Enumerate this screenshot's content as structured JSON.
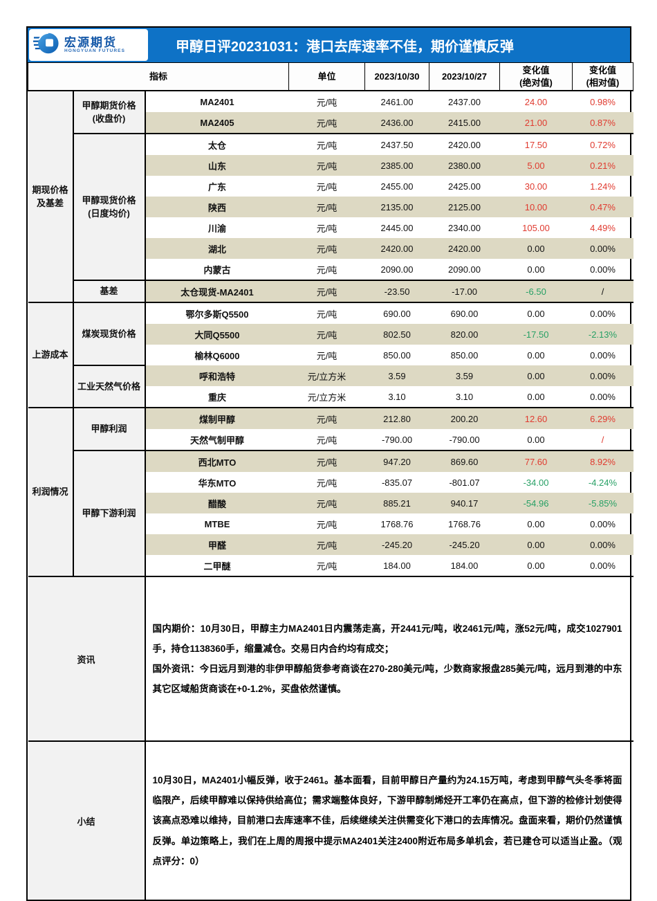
{
  "colors": {
    "accent_blue": "#0e72c6",
    "band_beige": "#ddd9c3",
    "label_gray": "#f2f2f2",
    "up_red": "#e03a2f",
    "down_green": "#27a065"
  },
  "header": {
    "logo": {
      "brand": "宏源期货",
      "brand_sub": "HONGYUAN FUTURES"
    },
    "title": "甲醇日评20231031：港口去库速率不佳，期价谨慎反弹"
  },
  "table": {
    "columns": {
      "indicator": "指标",
      "unit": "单位",
      "date1": "2023/10/30",
      "date2": "2023/10/27",
      "abs_change": "变化值\n(绝对值)",
      "rel_change": "变化值\n(相对值)"
    },
    "groups": [
      {
        "label": "期现价格\n及基差",
        "rows": 10
      },
      {
        "label": "上游成本",
        "rows": 5
      },
      {
        "label": "利润情况",
        "rows": 8
      }
    ],
    "subgroups": [
      {
        "label": "甲醇期货价格\n(收盘价)",
        "rows": 2
      },
      {
        "label": "甲醇现货价格\n(日度均价)",
        "rows": 7
      },
      {
        "label": "基差",
        "rows": 1
      },
      {
        "label": "煤炭现货价格",
        "rows": 3
      },
      {
        "label": "工业天然气价格",
        "rows": 2
      },
      {
        "label": "甲醇利润",
        "rows": 2
      },
      {
        "label": "甲醇下游利润",
        "rows": 6
      }
    ],
    "section_end_rows": [
      2,
      9,
      10,
      15,
      17
    ],
    "rows": [
      {
        "name": "MA2401",
        "unit": "元/吨",
        "v1": "2461.00",
        "v2": "2437.00",
        "abs": "24.00",
        "rel": "0.98%",
        "abs_c": "red",
        "rel_c": "red"
      },
      {
        "name": "MA2405",
        "unit": "元/吨",
        "v1": "2436.00",
        "v2": "2415.00",
        "abs": "21.00",
        "rel": "0.87%",
        "abs_c": "red",
        "rel_c": "red"
      },
      {
        "name": "太仓",
        "unit": "元/吨",
        "v1": "2437.50",
        "v2": "2420.00",
        "abs": "17.50",
        "rel": "0.72%",
        "abs_c": "red",
        "rel_c": "red"
      },
      {
        "name": "山东",
        "unit": "元/吨",
        "v1": "2385.00",
        "v2": "2380.00",
        "abs": "5.00",
        "rel": "0.21%",
        "abs_c": "red",
        "rel_c": "red"
      },
      {
        "name": "广东",
        "unit": "元/吨",
        "v1": "2455.00",
        "v2": "2425.00",
        "abs": "30.00",
        "rel": "1.24%",
        "abs_c": "red",
        "rel_c": "red"
      },
      {
        "name": "陕西",
        "unit": "元/吨",
        "v1": "2135.00",
        "v2": "2125.00",
        "abs": "10.00",
        "rel": "0.47%",
        "abs_c": "red",
        "rel_c": "red"
      },
      {
        "name": "川渝",
        "unit": "元/吨",
        "v1": "2445.00",
        "v2": "2340.00",
        "abs": "105.00",
        "rel": "4.49%",
        "abs_c": "red",
        "rel_c": "red"
      },
      {
        "name": "湖北",
        "unit": "元/吨",
        "v1": "2420.00",
        "v2": "2420.00",
        "abs": "0.00",
        "rel": "0.00%",
        "abs_c": "black",
        "rel_c": "black"
      },
      {
        "name": "内蒙古",
        "unit": "元/吨",
        "v1": "2090.00",
        "v2": "2090.00",
        "abs": "0.00",
        "rel": "0.00%",
        "abs_c": "black",
        "rel_c": "black"
      },
      {
        "name": "太仓现货-MA2401",
        "unit": "元/吨",
        "v1": "-23.50",
        "v2": "-17.00",
        "abs": "-6.50",
        "rel": "/",
        "abs_c": "green",
        "rel_c": "black"
      },
      {
        "name": "鄂尔多斯Q5500",
        "unit": "元/吨",
        "v1": "690.00",
        "v2": "690.00",
        "abs": "0.00",
        "rel": "0.00%",
        "abs_c": "black",
        "rel_c": "black"
      },
      {
        "name": "大同Q5500",
        "unit": "元/吨",
        "v1": "802.50",
        "v2": "820.00",
        "abs": "-17.50",
        "rel": "-2.13%",
        "abs_c": "green",
        "rel_c": "green"
      },
      {
        "name": "榆林Q6000",
        "unit": "元/吨",
        "v1": "850.00",
        "v2": "850.00",
        "abs": "0.00",
        "rel": "0.00%",
        "abs_c": "black",
        "rel_c": "black"
      },
      {
        "name": "呼和浩特",
        "unit": "元/立方米",
        "v1": "3.59",
        "v2": "3.59",
        "abs": "0.00",
        "rel": "0.00%",
        "abs_c": "black",
        "rel_c": "black"
      },
      {
        "name": "重庆",
        "unit": "元/立方米",
        "v1": "3.10",
        "v2": "3.10",
        "abs": "0.00",
        "rel": "0.00%",
        "abs_c": "black",
        "rel_c": "black"
      },
      {
        "name": "煤制甲醇",
        "unit": "元/吨",
        "v1": "212.80",
        "v2": "200.20",
        "abs": "12.60",
        "rel": "6.29%",
        "abs_c": "red",
        "rel_c": "red"
      },
      {
        "name": "天然气制甲醇",
        "unit": "元/吨",
        "v1": "-790.00",
        "v2": "-790.00",
        "abs": "0.00",
        "rel": "/",
        "abs_c": "black",
        "rel_c": "red"
      },
      {
        "name": "西北MTO",
        "unit": "元/吨",
        "v1": "947.20",
        "v2": "869.60",
        "abs": "77.60",
        "rel": "8.92%",
        "abs_c": "red",
        "rel_c": "red"
      },
      {
        "name": "华东MTO",
        "unit": "元/吨",
        "v1": "-835.07",
        "v2": "-801.07",
        "abs": "-34.00",
        "rel": "-4.24%",
        "abs_c": "green",
        "rel_c": "green"
      },
      {
        "name": "醋酸",
        "unit": "元/吨",
        "v1": "885.21",
        "v2": "940.17",
        "abs": "-54.96",
        "rel": "-5.85%",
        "abs_c": "green",
        "rel_c": "green"
      },
      {
        "name": "MTBE",
        "unit": "元/吨",
        "v1": "1768.76",
        "v2": "1768.76",
        "abs": "0.00",
        "rel": "0.00%",
        "abs_c": "black",
        "rel_c": "black"
      },
      {
        "name": "甲醛",
        "unit": "元/吨",
        "v1": "-245.20",
        "v2": "-245.20",
        "abs": "0.00",
        "rel": "0.00%",
        "abs_c": "black",
        "rel_c": "black"
      },
      {
        "name": "二甲醚",
        "unit": "元/吨",
        "v1": "184.00",
        "v2": "184.00",
        "abs": "0.00",
        "rel": "0.00%",
        "abs_c": "black",
        "rel_c": "black"
      }
    ]
  },
  "news": {
    "label": "资讯",
    "lines": [
      "国内期价：10月30日，甲醇主力MA2401日内震荡走高，开2441元/吨，收2461元/吨，涨52元/吨，成交1027901手，持仓1138360手，缩量减仓。交易日内合约均有成交；",
      "国外资讯：今日远月到港的非伊甲醇船货参考商谈在270-280美元/吨，少数商家报盘285美元/吨，远月到港的中东其它区域船货商谈在+0-1.2%，买盘依然谨慎。"
    ]
  },
  "summary": {
    "label": "小结",
    "text": "10月30日，MA2401小幅反弹，收于2461。基本面看，目前甲醇日产量约为24.15万吨，考虑到甲醇气头冬季将面临限产，后续甲醇难以保持供给高位；需求端整体良好，下游甲醇制烯烃开工率仍在高点，但下游的检修计划使得该高点恐难以维持，目前港口去库速率不佳，后续继续关注供需变化下港口的去库情况。盘面来看，期价仍然谨慎反弹。单边策略上，我们在上周的周报中提示MA2401关注2400附近布局多单机会，若已建仓可以适当止盈。（观点评分：0）"
  }
}
